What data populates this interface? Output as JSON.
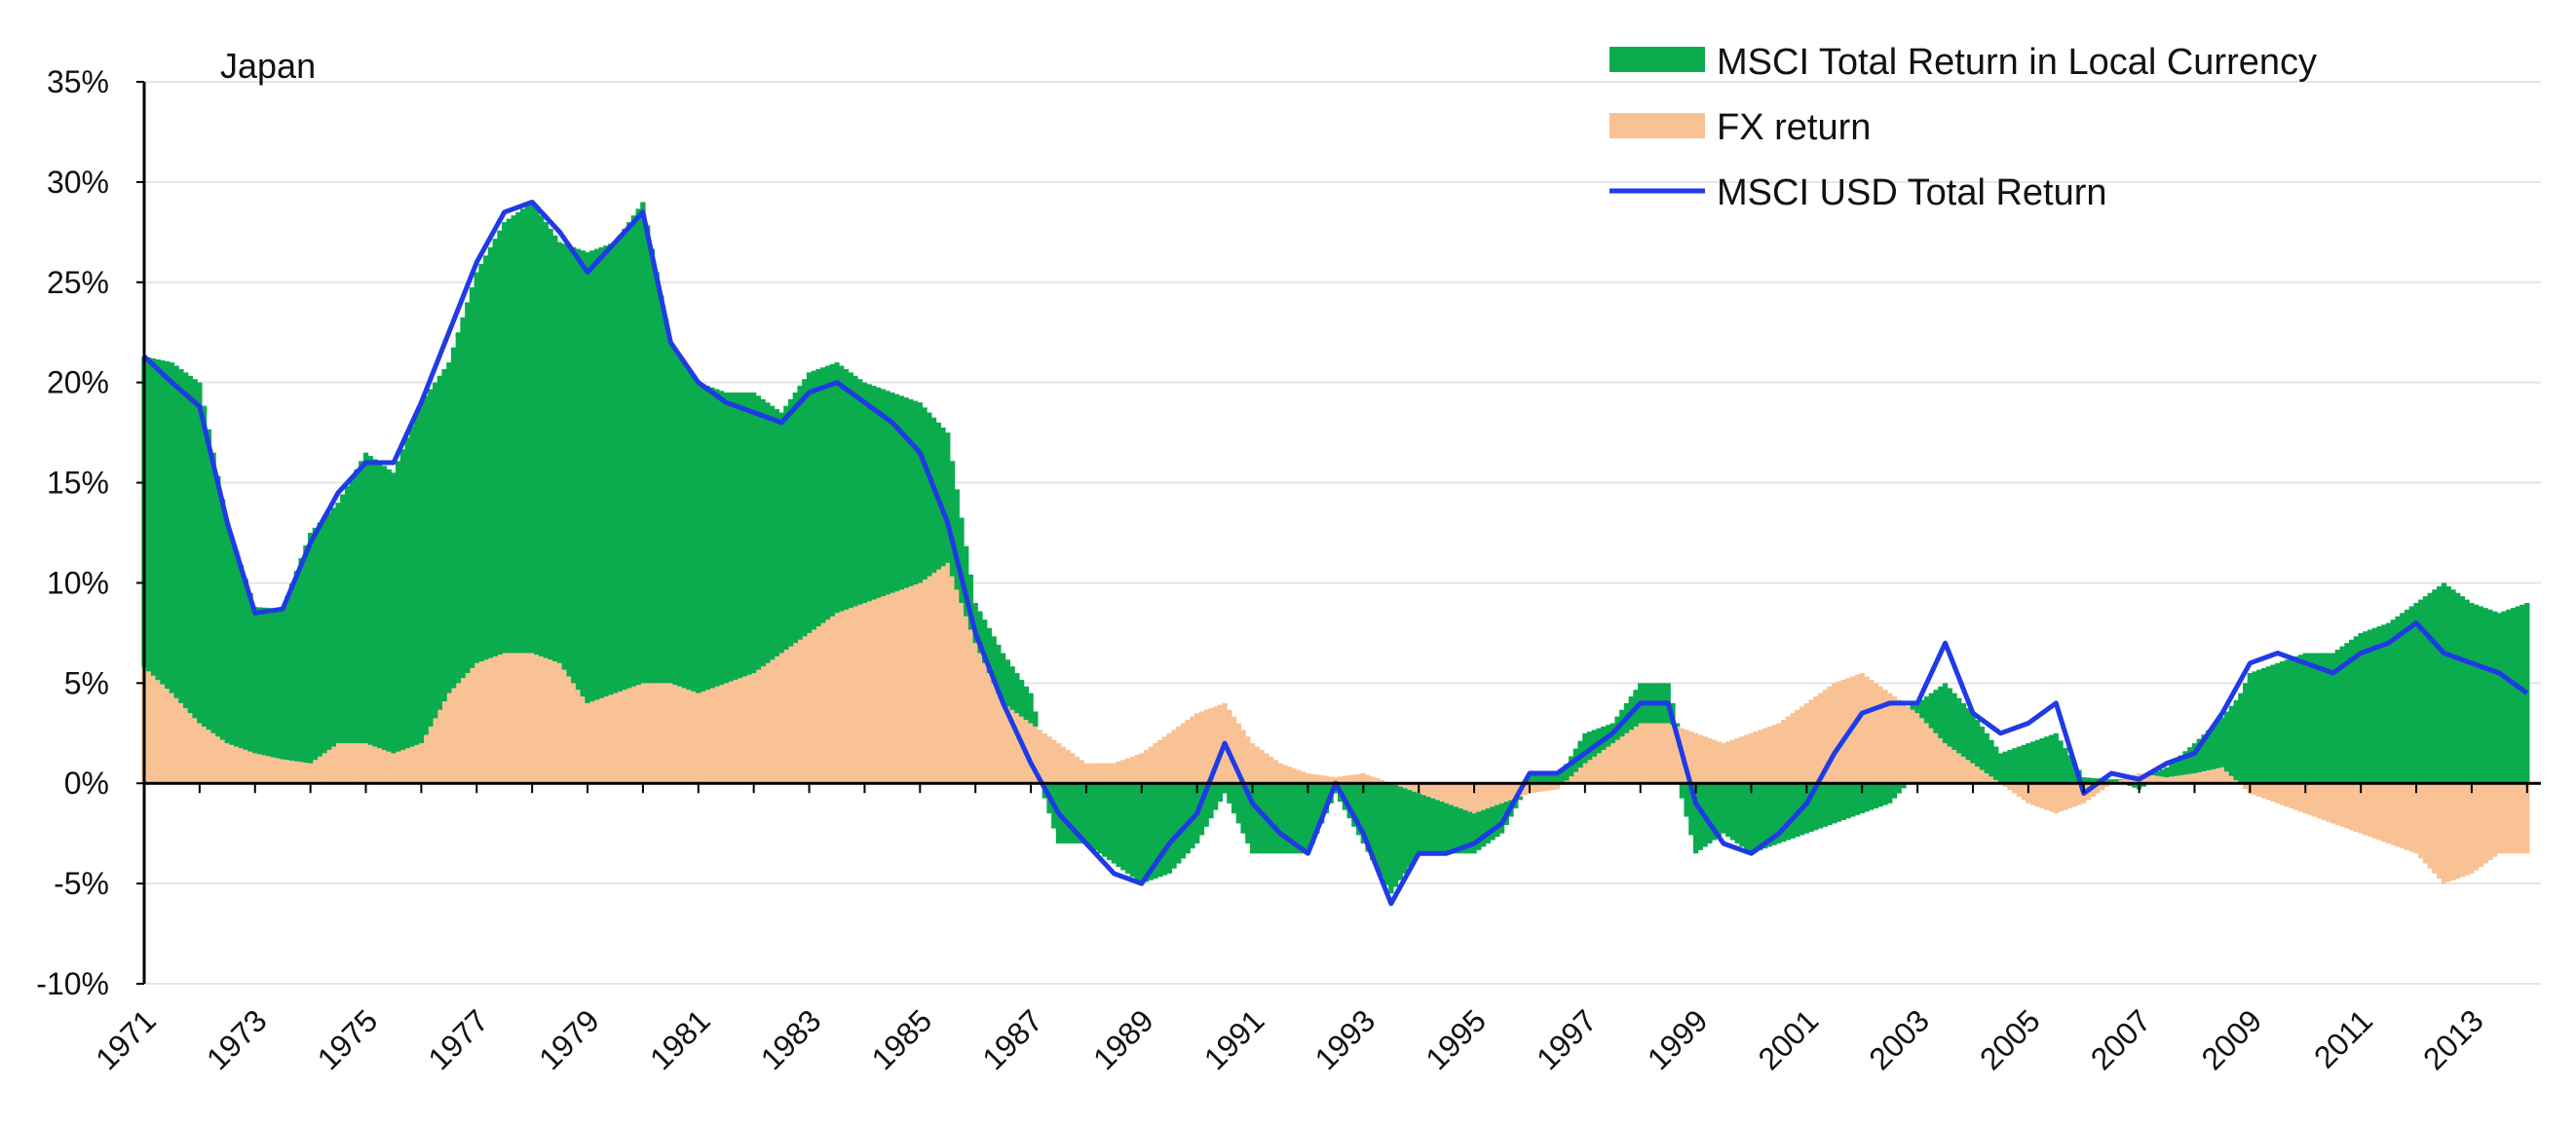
{
  "colors": {
    "local": "#0aac4e",
    "fx": "#f8c295",
    "usd": "#1f3ae6",
    "grid": "#e5e5e5",
    "axis": "#000000"
  },
  "chart_data": {
    "type": "area",
    "title": "Japan",
    "xlabel": "",
    "ylabel": "",
    "ylim": [
      -10,
      35
    ],
    "xlim": [
      1971,
      2014.25
    ],
    "y_ticks": [
      35,
      30,
      25,
      20,
      15,
      10,
      5,
      0,
      -5,
      -10
    ],
    "y_tick_labels": [
      "35%",
      "30%",
      "25%",
      "20%",
      "15%",
      "10%",
      "5%",
      "0%",
      "-5%",
      "-10%"
    ],
    "x_ticks": [
      "1971",
      "1973",
      "1975",
      "1977",
      "1979",
      "1981",
      "1983",
      "1985",
      "1987",
      "1989",
      "1991",
      "1993",
      "1995",
      "1997",
      "1999",
      "2001",
      "2003",
      "2005",
      "2007",
      "2009",
      "2011",
      "2013"
    ],
    "grid": "horizontal",
    "legend_position": "top-right",
    "legend": [
      {
        "name": "MSCI Total Return in Local Currency",
        "kind": "area",
        "color": "#0aac4e"
      },
      {
        "name": "FX return",
        "kind": "area",
        "color": "#f8c295"
      },
      {
        "name": "MSCI USD Total Return",
        "kind": "line",
        "color": "#1f3ae6"
      }
    ],
    "x": [
      1971.0,
      1971.5,
      1972.0,
      1972.5,
      1973.0,
      1973.5,
      1974.0,
      1974.5,
      1975.0,
      1975.5,
      1976.0,
      1976.5,
      1977.0,
      1977.5,
      1978.0,
      1978.5,
      1979.0,
      1979.5,
      1980.0,
      1980.5,
      1981.0,
      1981.5,
      1982.0,
      1982.5,
      1983.0,
      1983.5,
      1984.0,
      1984.5,
      1985.0,
      1985.5,
      1986.0,
      1986.5,
      1987.0,
      1987.5,
      1988.0,
      1988.5,
      1989.0,
      1989.5,
      1990.0,
      1990.5,
      1991.0,
      1991.5,
      1992.0,
      1992.5,
      1993.0,
      1993.5,
      1994.0,
      1994.5,
      1995.0,
      1995.5,
      1996.0,
      1996.5,
      1997.0,
      1997.5,
      1998.0,
      1998.5,
      1999.0,
      1999.5,
      2000.0,
      2000.5,
      2001.0,
      2001.5,
      2002.0,
      2002.5,
      2003.0,
      2003.5,
      2004.0,
      2004.5,
      2005.0,
      2005.5,
      2006.0,
      2006.5,
      2007.0,
      2007.5,
      2008.0,
      2008.5,
      2009.0,
      2009.5,
      2010.0,
      2010.5,
      2011.0,
      2011.5,
      2012.0,
      2012.5,
      2013.0,
      2013.5,
      2014.0
    ],
    "series": [
      {
        "name": "MSCI Total Return in Local Currency",
        "kind": "bar-area",
        "values": [
          15.5,
          16.5,
          17.0,
          11.0,
          7.3,
          7.5,
          11.5,
          12.0,
          14.5,
          14.0,
          17.0,
          16.5,
          19.5,
          21.5,
          22.5,
          21.0,
          22.5,
          22.5,
          24.0,
          17.0,
          15.5,
          14.5,
          14.0,
          12.0,
          13.0,
          12.5,
          11.0,
          10.0,
          9.0,
          6.5,
          2.0,
          2.5,
          1.5,
          -3.0,
          -3.0,
          -4.0,
          -5.0,
          -4.5,
          -3.0,
          -0.5,
          -3.5,
          -3.5,
          -3.5,
          -0.5,
          -3.0,
          -5.5,
          -3.0,
          -2.5,
          -2.0,
          -1.5,
          0.5,
          0.5,
          1.5,
          1.0,
          2.0,
          2.0,
          -3.5,
          -2.5,
          -3.5,
          -3.0,
          -2.5,
          -2.0,
          -1.5,
          -1.0,
          0.5,
          3.0,
          2.5,
          1.5,
          2.0,
          2.5,
          0.3,
          0.2,
          -0.3,
          0.5,
          1.5,
          2.5,
          5.5,
          6.0,
          6.5,
          6.5,
          7.5,
          8.0,
          9.0,
          10.0,
          9.0,
          8.5,
          9.0
        ]
      },
      {
        "name": "FX return",
        "kind": "bar-area",
        "values": [
          5.8,
          4.5,
          3.0,
          2.0,
          1.5,
          1.2,
          1.0,
          2.0,
          2.0,
          1.5,
          2.0,
          4.5,
          6.0,
          6.5,
          6.5,
          6.0,
          4.0,
          4.5,
          5.0,
          5.0,
          4.5,
          5.0,
          5.5,
          6.5,
          7.5,
          8.5,
          9.0,
          9.5,
          10.0,
          11.0,
          7.0,
          4.0,
          3.0,
          2.0,
          1.0,
          1.0,
          1.5,
          2.5,
          3.5,
          4.0,
          2.0,
          1.0,
          0.5,
          0.3,
          0.5,
          0.0,
          -0.5,
          -1.0,
          -1.5,
          -1.0,
          -0.5,
          -0.3,
          1.0,
          2.0,
          3.0,
          3.0,
          2.5,
          2.0,
          2.5,
          3.0,
          4.0,
          5.0,
          5.5,
          4.5,
          3.5,
          2.0,
          1.0,
          0.0,
          -1.0,
          -1.5,
          -1.0,
          0.0,
          0.5,
          0.3,
          0.5,
          0.8,
          -0.5,
          -1.0,
          -1.5,
          -2.0,
          -2.5,
          -3.0,
          -3.5,
          -5.0,
          -4.5,
          -3.5,
          -3.5
        ]
      },
      {
        "name": "MSCI USD Total Return",
        "kind": "line",
        "values": [
          21.3,
          20.0,
          18.8,
          13.0,
          8.5,
          8.7,
          12.0,
          14.5,
          16.0,
          16.0,
          19.0,
          22.5,
          26.0,
          28.5,
          29.0,
          27.5,
          25.5,
          27.0,
          28.5,
          22.0,
          20.0,
          19.0,
          18.5,
          18.0,
          19.5,
          20.0,
          19.0,
          18.0,
          16.5,
          13.0,
          7.5,
          4.0,
          1.0,
          -1.5,
          -3.0,
          -4.5,
          -5.0,
          -3.0,
          -1.5,
          2.0,
          -1.0,
          -2.5,
          -3.5,
          0.0,
          -2.5,
          -6.0,
          -3.5,
          -3.5,
          -3.0,
          -2.0,
          0.5,
          0.5,
          1.5,
          2.5,
          4.0,
          4.0,
          -1.0,
          -3.0,
          -3.5,
          -2.5,
          -1.0,
          1.5,
          3.5,
          4.0,
          4.0,
          7.0,
          3.5,
          2.5,
          3.0,
          4.0,
          -0.5,
          0.5,
          0.2,
          1.0,
          1.5,
          3.5,
          6.0,
          6.5,
          6.0,
          5.5,
          6.5,
          7.0,
          8.0,
          6.5,
          6.0,
          5.5,
          4.5
        ]
      }
    ]
  }
}
